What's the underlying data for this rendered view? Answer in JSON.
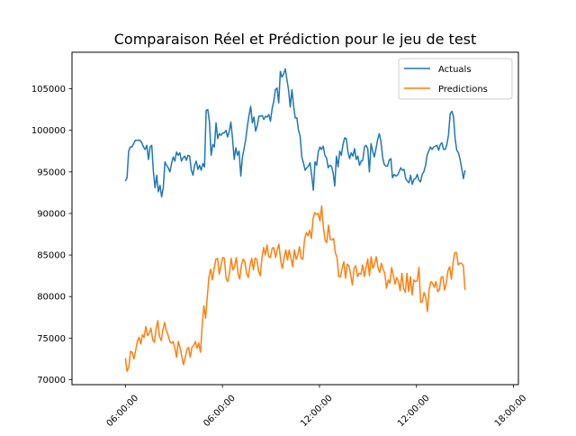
{
  "chart_data": {
    "type": "line",
    "title": "Comparaison Réel et Prédiction pour le jeu de test",
    "xlabel": "",
    "ylabel": "",
    "ylim": [
      69400,
      109400
    ],
    "xlim": [
      -0.55,
      4.05
    ],
    "x_ticks": [
      {
        "pos": 0,
        "label": "06:00:00"
      },
      {
        "pos": 1,
        "label": "06:00:00"
      },
      {
        "pos": 2,
        "label": "12:00:00"
      },
      {
        "pos": 3,
        "label": "12:00:00"
      },
      {
        "pos": 4,
        "label": "18:00:00"
      }
    ],
    "y_ticks": [
      70000,
      75000,
      80000,
      85000,
      90000,
      95000,
      100000,
      105000
    ],
    "y_tick_labels": [
      "70000",
      "75000",
      "80000",
      "85000",
      "90000",
      "95000",
      "100000",
      "105000"
    ],
    "legend_position": "top-right",
    "grid": false,
    "series": [
      {
        "name": "Actuals",
        "color": "#1f77b4",
        "values": [
          93900,
          94300,
          97500,
          98000,
          98000,
          98400,
          98800,
          98800,
          98800,
          98800,
          98500,
          98000,
          97700,
          98200,
          96500,
          98000,
          98200,
          95000,
          93100,
          94600,
          92600,
          93400,
          92000,
          93100,
          96200,
          95800,
          95500,
          95000,
          96000,
          96800,
          96300,
          97400,
          97000,
          97300,
          96300,
          96700,
          96900,
          96400,
          97000,
          96900,
          95200,
          94600,
          95800,
          96300,
          95300,
          95800,
          95200,
          96000,
          95600,
          102400,
          102500,
          101000,
          97000,
          98300,
          98000,
          100900,
          99000,
          99600,
          99400,
          99700,
          99700,
          100000,
          99200,
          99900,
          101000,
          99000,
          96500,
          97900,
          97000,
          97500,
          94500,
          96800,
          97800,
          98900,
          100500,
          101800,
          102900,
          100900,
          101600,
          99900,
          100600,
          101700,
          101700,
          101800,
          101300,
          101700,
          101600,
          101900,
          101100,
          102600,
          103500,
          104900,
          105100,
          103300,
          107100,
          106400,
          106800,
          107400,
          106100,
          104800,
          102800,
          104900,
          103000,
          101500,
          101500,
          100000,
          99300,
          96800,
          96100,
          95200,
          95500,
          95700,
          96100,
          94600,
          92800,
          96200,
          95800,
          97400,
          98000,
          97700,
          98100,
          97000,
          96700,
          95500,
          95800,
          95700,
          94900,
          93300,
          96900,
          95600,
          97500,
          97000,
          98300,
          99100,
          99000,
          97400,
          96600,
          97300,
          96900,
          97800,
          96500,
          96900,
          95800,
          96300,
          96400,
          98000,
          98200,
          97800,
          95000,
          98400,
          97500,
          96800,
          97800,
          98900,
          99600,
          98700,
          96800,
          95900,
          95700,
          95700,
          96400,
          96600,
          94300,
          94700,
          94500,
          94600,
          95000,
          95500,
          95200,
          95300,
          94200,
          93900,
          93700,
          94600,
          93500,
          94100,
          94200,
          94700,
          94000,
          93800,
          94700,
          95000,
          95700,
          97000,
          97500,
          98000,
          97700,
          98000,
          98100,
          98200,
          97600,
          98300,
          98500,
          97700,
          97700,
          98300,
          99500,
          102000,
          102300,
          101700,
          99000,
          97600,
          97300,
          96500,
          95400,
          94200,
          95200
        ]
      },
      {
        "name": "Predictions",
        "color": "#ff7f0e",
        "values": [
          72600,
          71000,
          71500,
          73400,
          73300,
          72500,
          73500,
          74600,
          75100,
          74300,
          75400,
          75100,
          76400,
          75300,
          75600,
          76200,
          74800,
          74500,
          76100,
          77100,
          75200,
          74700,
          76000,
          76900,
          75900,
          75400,
          74600,
          74400,
          74600,
          73800,
          72700,
          74600,
          73900,
          72900,
          71800,
          72600,
          73600,
          73900,
          72700,
          73900,
          74100,
          74600,
          73800,
          74400,
          73300,
          76500,
          78900,
          77400,
          80000,
          82400,
          83300,
          82000,
          83300,
          84500,
          84600,
          82700,
          83700,
          84700,
          84600,
          82200,
          81800,
          82800,
          84600,
          83200,
          83600,
          84700,
          82800,
          82100,
          83800,
          84500,
          84200,
          82800,
          82300,
          83700,
          84600,
          83200,
          84600,
          84500,
          83100,
          82500,
          84600,
          85900,
          85000,
          86200,
          84800,
          84700,
          85800,
          85900,
          84700,
          85600,
          86300,
          84300,
          83400,
          84600,
          85600,
          84400,
          85600,
          84700,
          83600,
          85600,
          84500,
          85000,
          86000,
          84600,
          84500,
          86900,
          87700,
          87300,
          88000,
          87000,
          89400,
          90100,
          89900,
          90000,
          89100,
          90900,
          88400,
          86800,
          86500,
          88600,
          86900,
          86800,
          87000,
          85300,
          84700,
          82400,
          82400,
          83400,
          84200,
          82200,
          83900,
          83700,
          82600,
          81400,
          83400,
          83700,
          82400,
          82800,
          82700,
          83800,
          82400,
          83500,
          84500,
          82500,
          84800,
          83400,
          83900,
          84800,
          83500,
          82900,
          84000,
          83300,
          82800,
          81000,
          82000,
          81600,
          83500,
          82500,
          81500,
          82300,
          81800,
          80700,
          82800,
          81000,
          80500,
          82800,
          80600,
          82400,
          80200,
          82000,
          81800,
          81900,
          83500,
          79300,
          79400,
          80500,
          79900,
          78200,
          80900,
          81800,
          81600,
          81100,
          81800,
          80600,
          80800,
          82300,
          82400,
          80800,
          81600,
          83100,
          83600,
          82100,
          84100,
          85300,
          85300,
          83800,
          84000,
          84000,
          83700,
          80800
        ]
      }
    ]
  }
}
